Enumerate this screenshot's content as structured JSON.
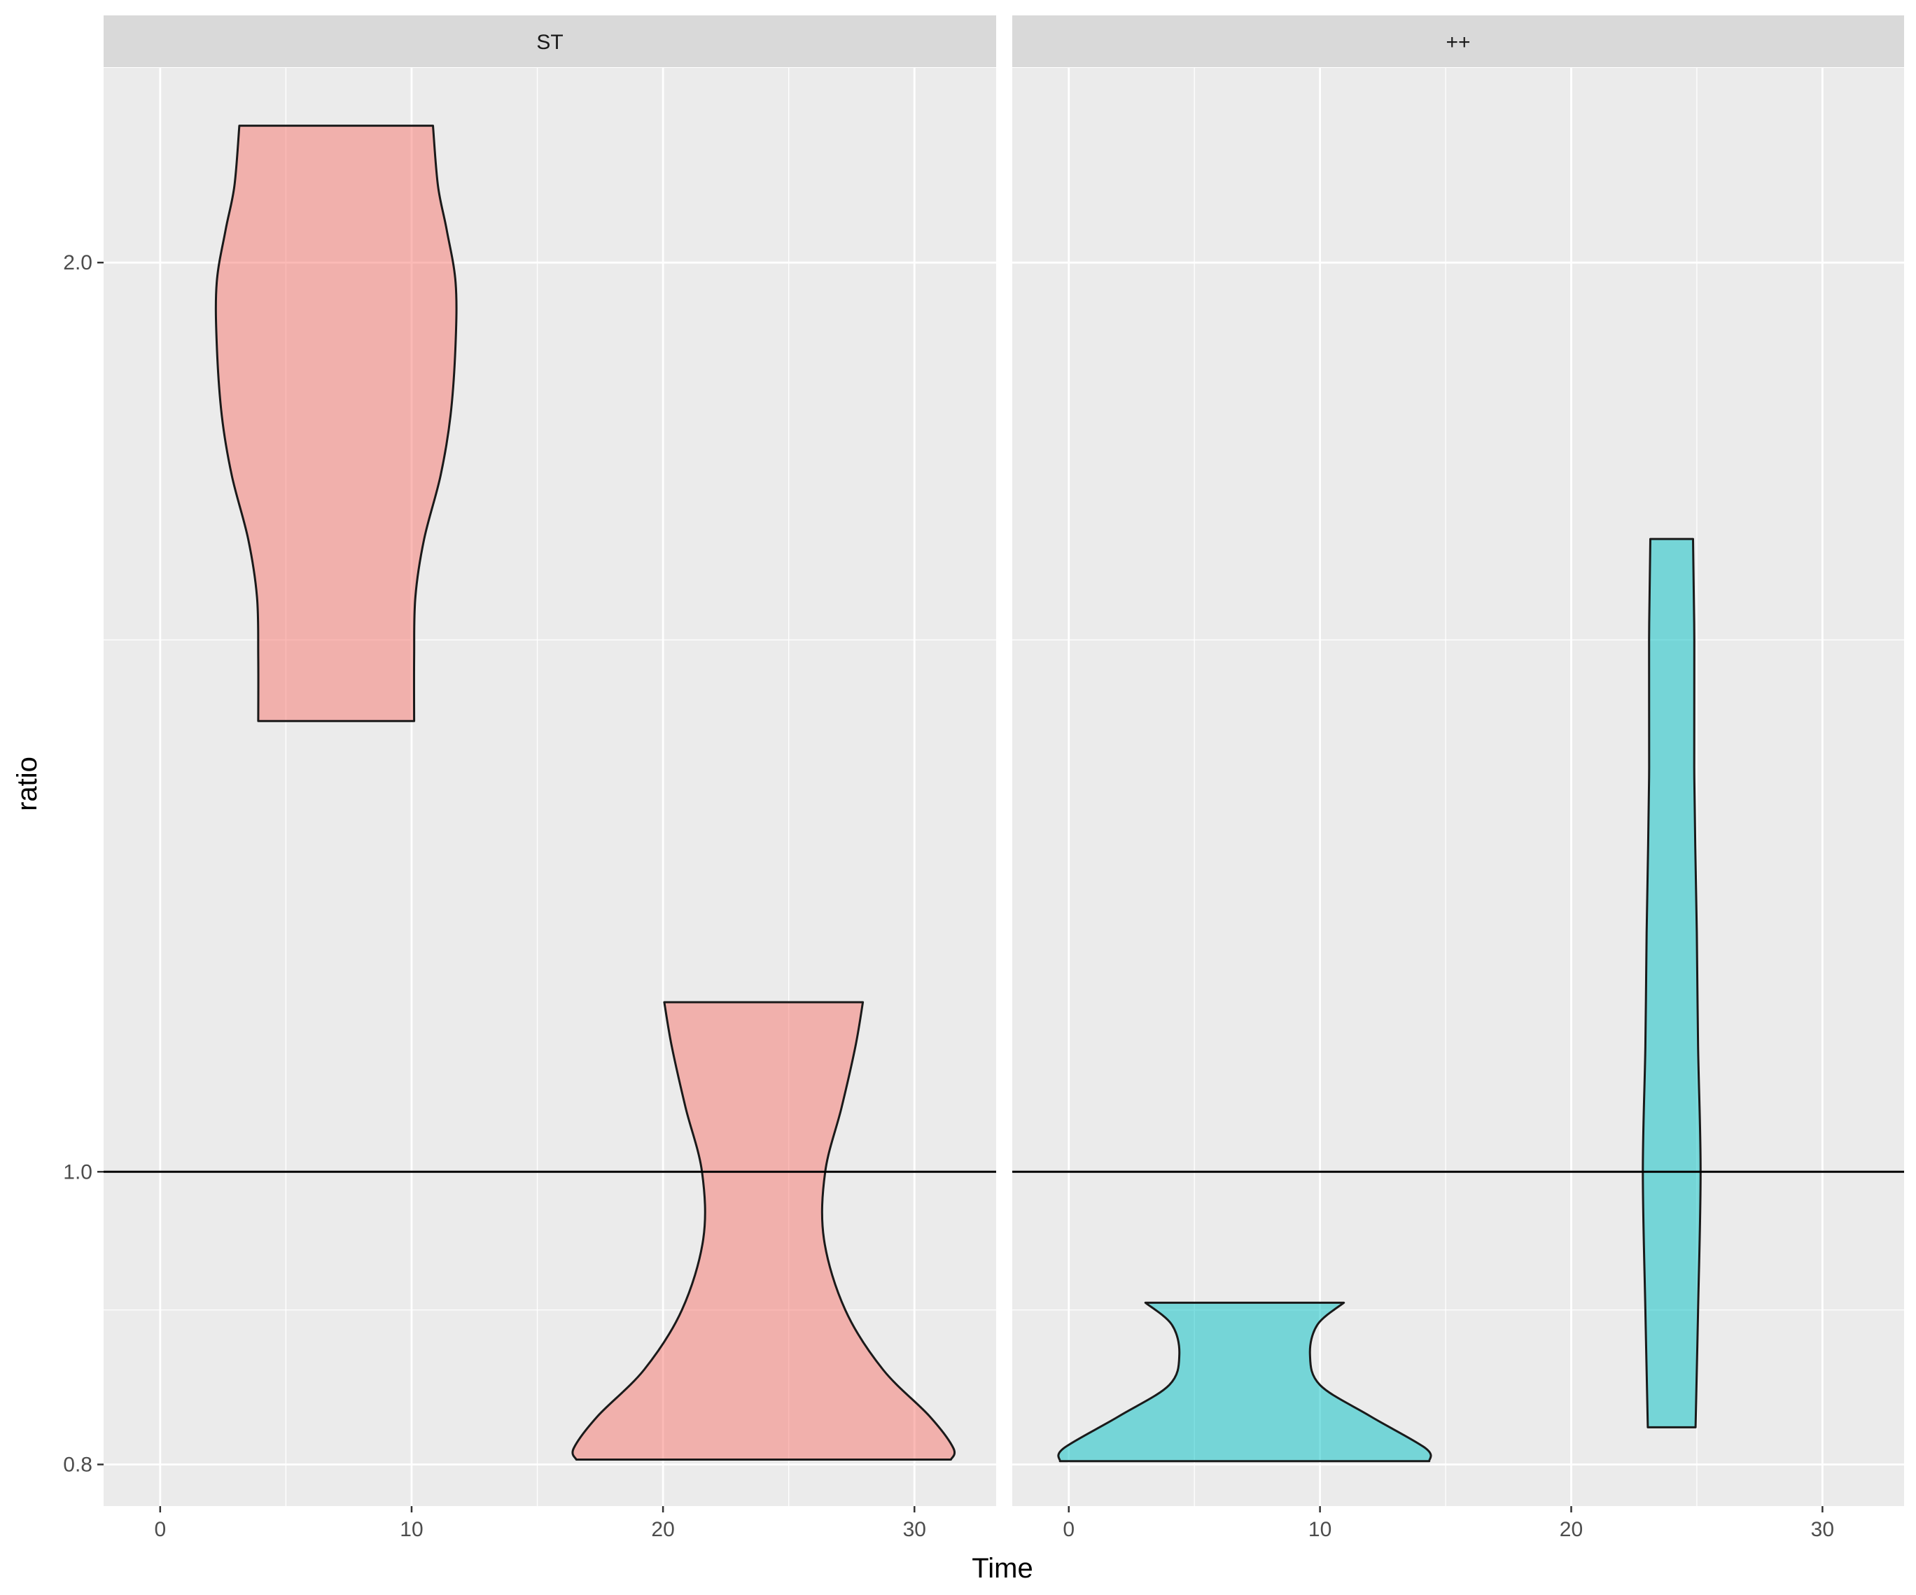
{
  "chart_data": {
    "type": "violin",
    "xlabel": "Time",
    "ylabel": "ratio",
    "y_scale": "log10",
    "xlim": [
      -2.25,
      33.25
    ],
    "ylim": [
      0.775,
      2.32
    ],
    "x_ticks": [
      0,
      10,
      20,
      30
    ],
    "x_tick_labels": [
      "0",
      "10",
      "20",
      "30"
    ],
    "x_minor_ticks": [
      5,
      15,
      25
    ],
    "y_ticks": [
      0.8,
      1.0,
      2.0
    ],
    "y_tick_labels": [
      "0.8",
      "1.0",
      "2.0"
    ],
    "y_minor_ticks": [
      0.9,
      1.5
    ],
    "reference_line": {
      "y": 1.0,
      "color": "#000000"
    },
    "grid": true,
    "legend": "none",
    "panels": [
      {
        "strip_label": "ST",
        "fill": "#F8766D",
        "violins": [
          {
            "x": 7,
            "profile": [
              [
                1.41,
                3.1
              ],
              [
                1.48,
                3.1
              ],
              [
                1.55,
                3.15
              ],
              [
                1.62,
                3.5
              ],
              [
                1.7,
                4.15
              ],
              [
                1.78,
                4.55
              ],
              [
                1.88,
                4.75
              ],
              [
                1.97,
                4.75
              ],
              [
                2.05,
                4.4
              ],
              [
                2.12,
                4.05
              ],
              [
                2.22,
                3.85
              ]
            ]
          },
          {
            "x": 24,
            "profile": [
              [
                0.803,
                7.45
              ],
              [
                0.81,
                7.55
              ],
              [
                0.83,
                6.6
              ],
              [
                0.86,
                4.75
              ],
              [
                0.9,
                3.25
              ],
              [
                0.95,
                2.4
              ],
              [
                1.0,
                2.45
              ],
              [
                1.05,
                3.1
              ],
              [
                1.1,
                3.65
              ],
              [
                1.138,
                3.95
              ]
            ]
          }
        ]
      },
      {
        "strip_label": "++",
        "fill": "#00BFC4",
        "violins": [
          {
            "x": 7,
            "profile": [
              [
                0.802,
                7.35
              ],
              [
                0.81,
                7.2
              ],
              [
                0.83,
                5.0
              ],
              [
                0.85,
                3.0
              ],
              [
                0.87,
                2.6
              ],
              [
                0.89,
                2.9
              ],
              [
                0.905,
                3.95
              ]
            ]
          },
          {
            "x": 24,
            "profile": [
              [
                0.823,
                0.95
              ],
              [
                0.9,
                1.05
              ],
              [
                1.0,
                1.15
              ],
              [
                1.1,
                1.05
              ],
              [
                1.2,
                1.0
              ],
              [
                1.35,
                0.9
              ],
              [
                1.5,
                0.9
              ],
              [
                1.62,
                0.85
              ]
            ]
          }
        ]
      }
    ]
  }
}
